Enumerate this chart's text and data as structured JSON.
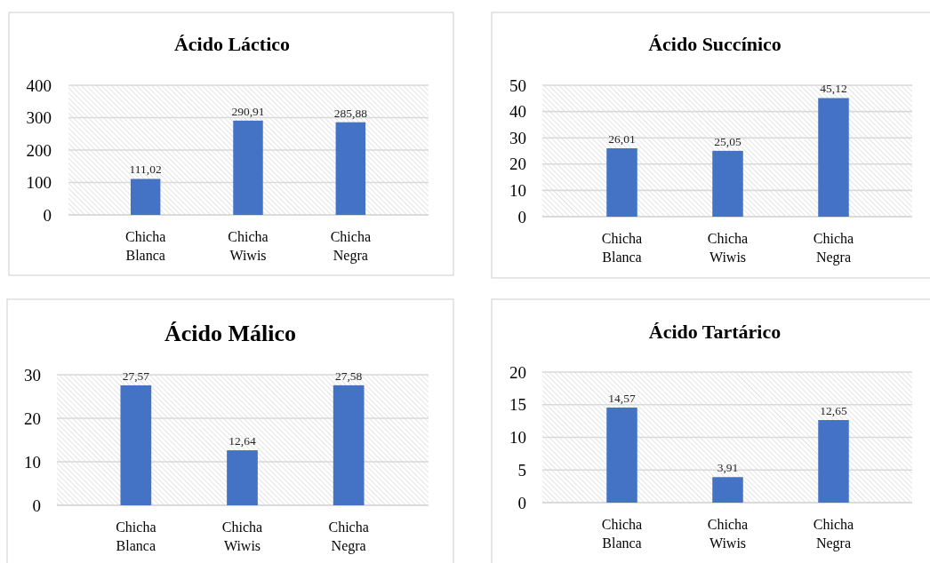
{
  "chart_data": [
    {
      "type": "bar",
      "title": "Ácido Láctico",
      "categories": [
        "Chicha Blanca",
        "Chicha Wiwis",
        "Chicha Negra"
      ],
      "values": [
        111.02,
        290.91,
        285.88
      ],
      "value_labels": [
        "111,02",
        "290,91",
        "285,88"
      ],
      "color": "#4472c4",
      "ylim": [
        0,
        400
      ],
      "yticks": [
        0,
        100,
        200,
        300,
        400
      ],
      "grid": "y"
    },
    {
      "type": "bar",
      "title": "Ácido Succínico",
      "categories": [
        "Chicha Blanca",
        "Chicha Wiwis",
        "Chicha Negra"
      ],
      "values": [
        26.01,
        25.05,
        45.12
      ],
      "value_labels": [
        "26,01",
        "25,05",
        "45,12"
      ],
      "color": "#4472c4",
      "ylim": [
        0,
        50
      ],
      "yticks": [
        0,
        10,
        20,
        30,
        40,
        50
      ],
      "grid": "y"
    },
    {
      "type": "bar",
      "title": "Ácido Málico",
      "categories": [
        "Chicha Blanca",
        "Chicha Wiwis",
        "Chicha Negra"
      ],
      "values": [
        27.57,
        12.64,
        27.58
      ],
      "value_labels": [
        "27,57",
        "12,64",
        "27,58"
      ],
      "color": "#4472c4",
      "ylim": [
        0,
        30
      ],
      "yticks": [
        0,
        10,
        20,
        30
      ],
      "grid": "y"
    },
    {
      "type": "bar",
      "title": "Ácido Tartárico",
      "categories": [
        "Chicha Blanca",
        "Chicha Wiwis",
        "Chicha Negra"
      ],
      "values": [
        14.57,
        3.91,
        12.65
      ],
      "value_labels": [
        "14,57",
        "3,91",
        "12,65"
      ],
      "color": "#4472c4",
      "ylim": [
        0,
        20
      ],
      "yticks": [
        0,
        5,
        10,
        15,
        20
      ],
      "grid": "y"
    }
  ]
}
